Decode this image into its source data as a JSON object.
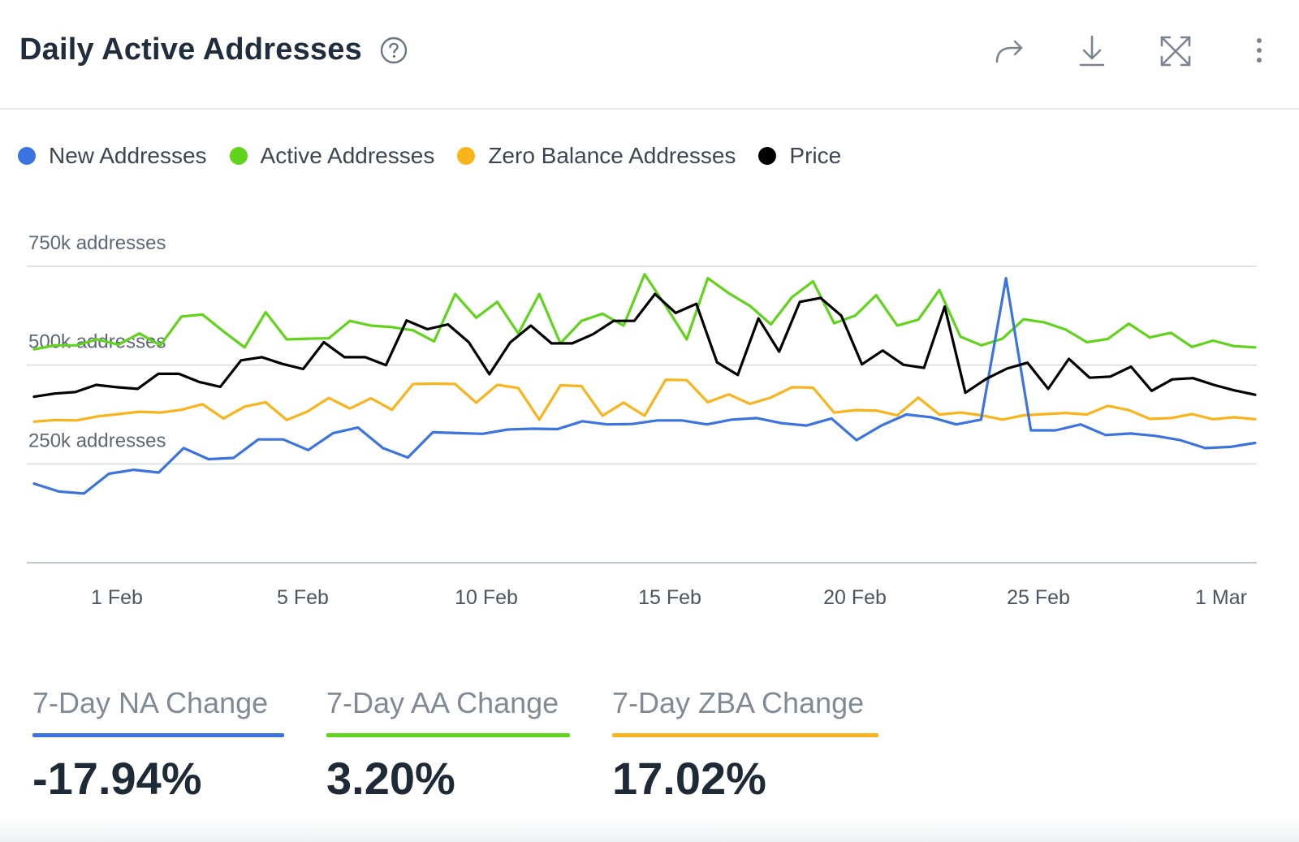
{
  "header": {
    "title": "Daily Active Addresses"
  },
  "colors": {
    "new": "#3b73e0",
    "active": "#5fd41a",
    "zero": "#f9b31b",
    "price": "#000000",
    "grid": "#dfe3e6",
    "axis": "#bfc6cc"
  },
  "legend": [
    {
      "label": "New Addresses",
      "color": "#3b73e0"
    },
    {
      "label": "Active Addresses",
      "color": "#5fd41a"
    },
    {
      "label": "Zero Balance Addresses",
      "color": "#f9b31b"
    },
    {
      "label": "Price",
      "color": "#000000"
    }
  ],
  "chart_data": {
    "type": "line",
    "x_tick_labels": [
      "1 Feb",
      "5 Feb",
      "10 Feb",
      "15 Feb",
      "20 Feb",
      "25 Feb",
      "1 Mar"
    ],
    "y_tick_labels": [
      "750k addresses",
      "500k addresses",
      "250k addresses"
    ],
    "y_ticks": [
      750000,
      500000,
      250000
    ],
    "ylim": [
      0,
      750000
    ],
    "grid": true,
    "series": [
      {
        "name": "New Addresses",
        "color": "#3b73e0",
        "values": [
          200000,
          180000,
          175000,
          225000,
          235000,
          228000,
          290000,
          262000,
          265000,
          312000,
          312000,
          285000,
          328000,
          342000,
          290000,
          266000,
          330000,
          328000,
          326000,
          337000,
          339000,
          338000,
          358000,
          350000,
          351000,
          360000,
          360000,
          350000,
          362000,
          366000,
          353000,
          347000,
          365000,
          310000,
          347000,
          375000,
          368000,
          350000,
          362000,
          720000,
          335000,
          335000,
          350000,
          323000,
          327000,
          321000,
          310000,
          290000,
          293000,
          303000
        ]
      },
      {
        "name": "Active Addresses",
        "color": "#5fd41a",
        "values": [
          540000,
          550000,
          550000,
          565000,
          552000,
          580000,
          550000,
          623000,
          628000,
          585000,
          545000,
          634000,
          565000,
          567000,
          568000,
          612000,
          600000,
          596000,
          588000,
          560000,
          680000,
          620000,
          660000,
          580000,
          680000,
          555000,
          612000,
          630000,
          600000,
          730000,
          650000,
          565000,
          720000,
          682000,
          650000,
          603000,
          672000,
          712000,
          606000,
          625000,
          677000,
          600000,
          615000,
          690000,
          572000,
          550000,
          567000,
          616000,
          608000,
          590000,
          558000,
          566000,
          605000,
          570000,
          582000,
          546000,
          562000,
          548000,
          545000
        ]
      },
      {
        "name": "Zero Balance Addresses",
        "color": "#f9b31b",
        "values": [
          357000,
          361000,
          360000,
          370000,
          376000,
          382000,
          380000,
          387000,
          401000,
          365000,
          395000,
          406000,
          361000,
          383000,
          417000,
          390000,
          416000,
          387000,
          452000,
          453000,
          452000,
          405000,
          450000,
          442000,
          362000,
          449000,
          447000,
          372000,
          405000,
          372000,
          463000,
          462000,
          406000,
          426000,
          402000,
          418000,
          444000,
          443000,
          380000,
          386000,
          385000,
          373000,
          418000,
          375000,
          380000,
          373000,
          362000,
          373000,
          376000,
          379000,
          375000,
          397000,
          386000,
          364000,
          366000,
          376000,
          363000,
          368000,
          363000
        ]
      },
      {
        "name": "Price",
        "color": "#000000",
        "values": [
          420000,
          428000,
          432000,
          450000,
          444000,
          440000,
          478000,
          478000,
          457000,
          445000,
          512000,
          520000,
          503000,
          490000,
          558000,
          520000,
          520000,
          500000,
          613000,
          591000,
          603000,
          558000,
          477000,
          557000,
          600000,
          555000,
          555000,
          578000,
          612000,
          612000,
          680000,
          632000,
          655000,
          507000,
          475000,
          618000,
          534000,
          660000,
          670000,
          625000,
          502000,
          537000,
          501000,
          493000,
          648000,
          430000,
          465000,
          491000,
          506000,
          440000,
          516000,
          468000,
          471000,
          496000,
          435000,
          464000,
          467000,
          450000,
          436000,
          425000
        ]
      }
    ]
  },
  "stats": [
    {
      "label": "7-Day NA Change",
      "value": "-17.94%",
      "color": "#3b73e0"
    },
    {
      "label": "7-Day AA Change",
      "value": "3.20%",
      "color": "#5fd41a"
    },
    {
      "label": "7-Day ZBA Change",
      "value": "17.02%",
      "color": "#f9b31b"
    }
  ]
}
